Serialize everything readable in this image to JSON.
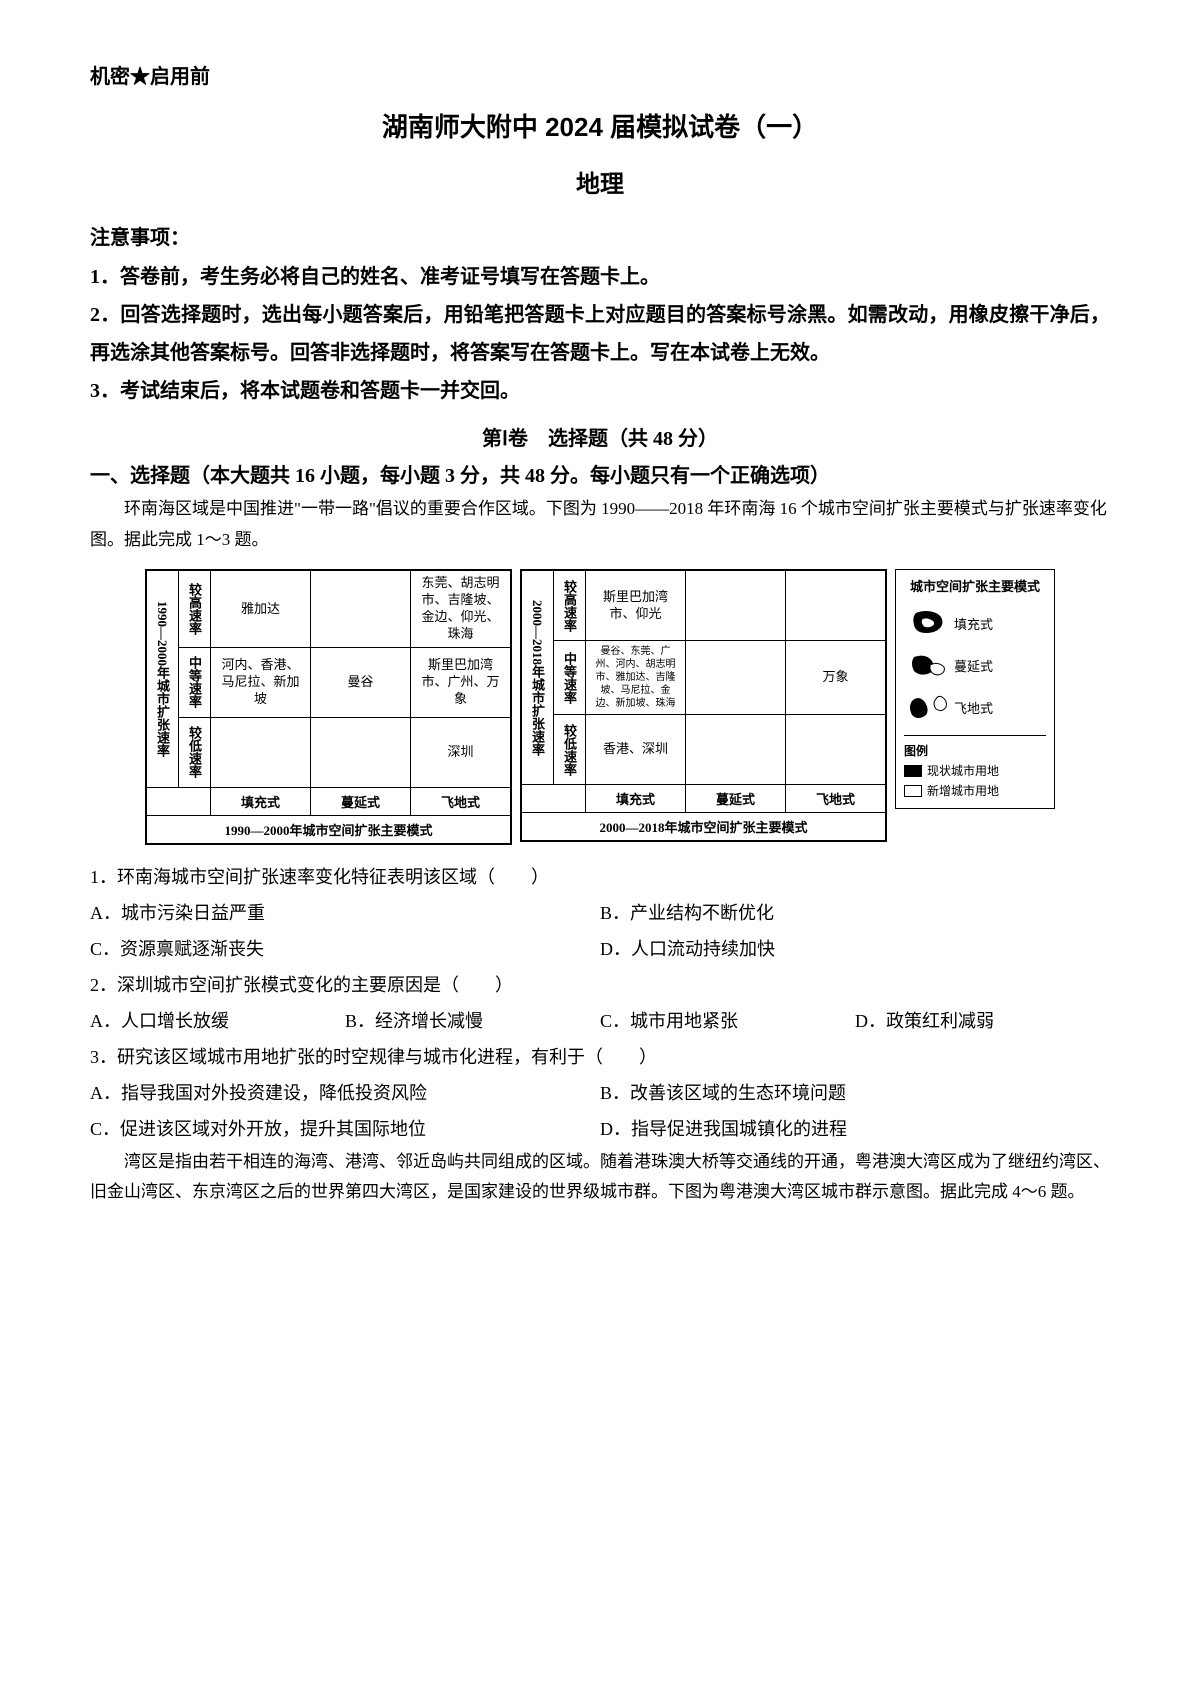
{
  "header": {
    "confidential": "机密★启用前",
    "main_title": "湖南师大附中 2024 届模拟试卷（一）",
    "subject": "地理"
  },
  "instructions": {
    "title": "注意事项：",
    "items": [
      "1．答卷前，考生务必将自己的姓名、准考证号填写在答题卡上。",
      "2．回答选择题时，选出每小题答案后，用铅笔把答题卡上对应题目的答案标号涂黑。如需改动，用橡皮擦干净后，再选涂其他答案标号。回答非选择题时，将答案写在答题卡上。写在本试卷上无效。",
      "3．考试结束后，将本试题卷和答题卡一并交回。"
    ]
  },
  "section1": {
    "title": "第Ⅰ卷　选择题（共 48 分）",
    "group_title": "一、选择题（本大题共 16 小题，每小题 3 分，共 48 分。每小题只有一个正确选项）"
  },
  "passage1": {
    "text": "环南海区域是中国推进\"一带一路\"倡议的重要合作区域。下图为 1990——2018 年环南海 16 个城市空间扩张主要模式与扩张速率变化图。据此完成 1～3 题。"
  },
  "figure1": {
    "left_matrix": {
      "y_axis": "1990—2000年城市扩张速率",
      "rate_rows": [
        "较高速率",
        "中等速率",
        "较低速率"
      ],
      "mode_cols": [
        "填充式",
        "蔓延式",
        "飞地式"
      ],
      "cells": [
        [
          "雅加达",
          "",
          "东莞、胡志明市、吉隆坡、金边、仰光、珠海"
        ],
        [
          "河内、香港、马尼拉、新加坡",
          "曼谷",
          "斯里巴加湾市、广州、万象"
        ],
        [
          "",
          "",
          "深圳"
        ]
      ],
      "caption": "1990—2000年城市空间扩张主要模式"
    },
    "right_matrix": {
      "y_axis": "2000—2018年城市扩张速率",
      "rate_rows": [
        "较高速率",
        "中等速率",
        "较低速率"
      ],
      "mode_cols": [
        "填充式",
        "蔓延式",
        "飞地式"
      ],
      "cells": [
        [
          "斯里巴加湾市、仰光",
          "",
          ""
        ],
        [
          "曼谷、东莞、广州、河内、胡志明市、雅加达、吉隆坡、马尼拉、金边、新加坡、珠海",
          "",
          "万象"
        ],
        [
          "香港、深圳",
          "",
          ""
        ]
      ],
      "caption": "2000—2018年城市空间扩张主要模式"
    },
    "legend": {
      "title": "城市空间扩张主要模式",
      "modes": [
        {
          "label": "填充式",
          "shape": "fill"
        },
        {
          "label": "蔓延式",
          "shape": "spread"
        },
        {
          "label": "飞地式",
          "shape": "enclave"
        }
      ],
      "key_title": "图例",
      "key_items": [
        {
          "label": "现状城市用地",
          "filled": true
        },
        {
          "label": "新增城市用地",
          "filled": false
        }
      ]
    }
  },
  "questions": [
    {
      "stem": "1．环南海城市空间扩张速率变化特征表明该区域（　　）",
      "layout": "half",
      "options": [
        "A．城市污染日益严重",
        "B．产业结构不断优化",
        "C．资源禀赋逐渐丧失",
        "D．人口流动持续加快"
      ]
    },
    {
      "stem": "2．深圳城市空间扩张模式变化的主要原因是（　　）",
      "layout": "quarter",
      "options": [
        "A．人口增长放缓",
        "B．经济增长减慢",
        "C．城市用地紧张",
        "D．政策红利减弱"
      ]
    },
    {
      "stem": "3．研究该区域城市用地扩张的时空规律与城市化进程，有利于（　　）",
      "layout": "half",
      "options": [
        "A．指导我国对外投资建设，降低投资风险",
        "B．改善该区域的生态环境问题",
        "C．促进该区域对外开放，提升其国际地位",
        "D．指导促进我国城镇化的进程"
      ]
    }
  ],
  "passage2": {
    "text": "湾区是指由若干相连的海湾、港湾、邻近岛屿共同组成的区域。随着港珠澳大桥等交通线的开通，粤港澳大湾区成为了继纽约湾区、旧金山湾区、东京湾区之后的世界第四大湾区，是国家建设的世界级城市群。下图为粤港澳大湾区城市群示意图。据此完成 4～6 题。"
  }
}
